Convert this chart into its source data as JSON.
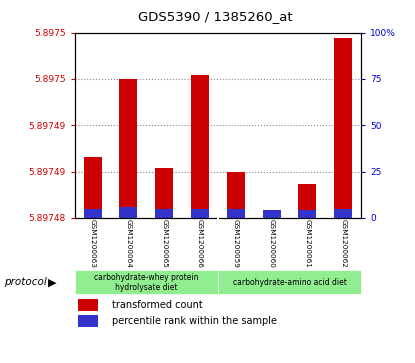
{
  "title": "GDS5390 / 1385260_at",
  "samples": [
    "GSM1200063",
    "GSM1200064",
    "GSM1200065",
    "GSM1200066",
    "GSM1200059",
    "GSM1200060",
    "GSM1200061",
    "GSM1200062"
  ],
  "percentile_red": [
    33,
    75,
    27,
    77,
    25,
    3,
    18,
    97
  ],
  "percentile_blue": [
    5,
    6,
    5,
    5,
    5,
    4,
    4,
    5
  ],
  "y_min": 5.89748,
  "y_max": 5.89751,
  "right_y_ticks": [
    0,
    25,
    50,
    75,
    100
  ],
  "right_y_labels": [
    "0",
    "25",
    "50",
    "75",
    "100%"
  ],
  "left_y_ticks_pct": [
    0,
    25,
    50,
    75,
    100
  ],
  "left_y_labels": [
    "5.89748",
    "5.89749",
    "5.89749",
    "5.8975",
    "5.8975"
  ],
  "group1_label": "carbohydrate-whey protein\nhydrolysate diet",
  "group2_label": "carbohydrate-amino acid diet",
  "protocol_label": "protocol",
  "legend_red": "transformed count",
  "legend_blue": "percentile rank within the sample",
  "bar_color_red": "#cc0000",
  "bar_color_blue": "#3333cc",
  "group1_bg": "#90ee90",
  "group2_bg": "#90ee90",
  "sample_bg": "#d3d3d3",
  "plot_bg": "#ffffff",
  "dotted_color": "#888888",
  "title_color": "#000000",
  "left_tick_color": "#cc0000",
  "right_tick_color": "#0000cc",
  "bar_width": 0.5,
  "group1_indices": [
    0,
    1,
    2,
    3
  ],
  "group2_indices": [
    4,
    5,
    6,
    7
  ]
}
